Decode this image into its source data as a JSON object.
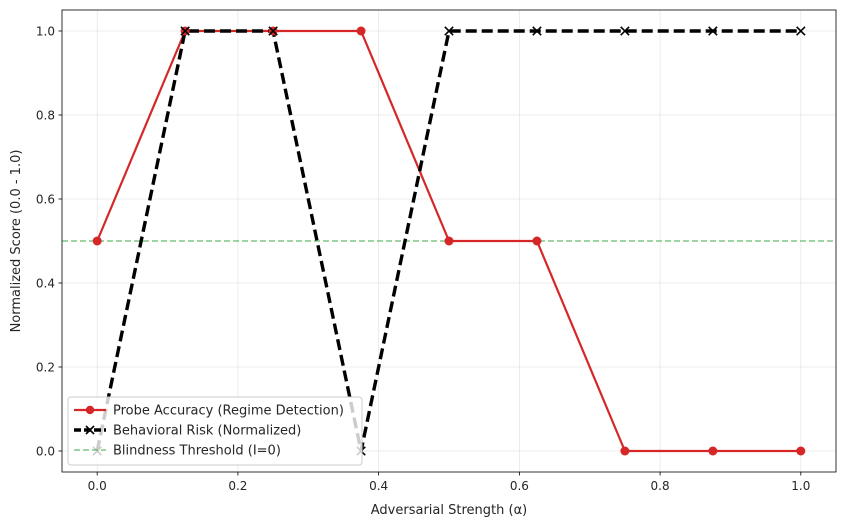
{
  "chart_data": {
    "type": "line",
    "xlabel": "Adversarial Strength (α)",
    "ylabel": "Normalized Score (0.0 - 1.0)",
    "xlim": [
      -0.05,
      1.05
    ],
    "ylim": [
      -0.05,
      1.05
    ],
    "x_ticks": [
      "0.0",
      "0.2",
      "0.4",
      "0.6",
      "0.8",
      "1.0"
    ],
    "y_ticks": [
      "0.0",
      "0.2",
      "0.4",
      "0.6",
      "0.8",
      "1.0"
    ],
    "grid": true,
    "legend_position": "lower-left",
    "series": [
      {
        "name": "Probe Accuracy (Regime Detection)",
        "color": "#d62728",
        "marker": "circle",
        "line_style": "solid",
        "x": [
          0.0,
          0.125,
          0.25,
          0.375,
          0.5,
          0.625,
          0.75,
          0.875,
          1.0
        ],
        "y": [
          0.5,
          1.0,
          1.0,
          1.0,
          0.5,
          0.5,
          0.0,
          0.0,
          0.0
        ]
      },
      {
        "name": "Behavioral Risk (Normalized)",
        "color": "#000000",
        "marker": "x",
        "line_style": "dashed",
        "x": [
          0.0,
          0.125,
          0.25,
          0.375,
          0.5,
          0.625,
          0.75,
          0.875,
          1.0
        ],
        "y": [
          0.0,
          1.0,
          1.0,
          0.0,
          1.0,
          1.0,
          1.0,
          1.0,
          1.0
        ]
      }
    ],
    "reference_lines": [
      {
        "name": "Blindness Threshold (I=0)",
        "color": "#4caf50",
        "line_style": "dashed",
        "y": 0.5
      }
    ]
  }
}
